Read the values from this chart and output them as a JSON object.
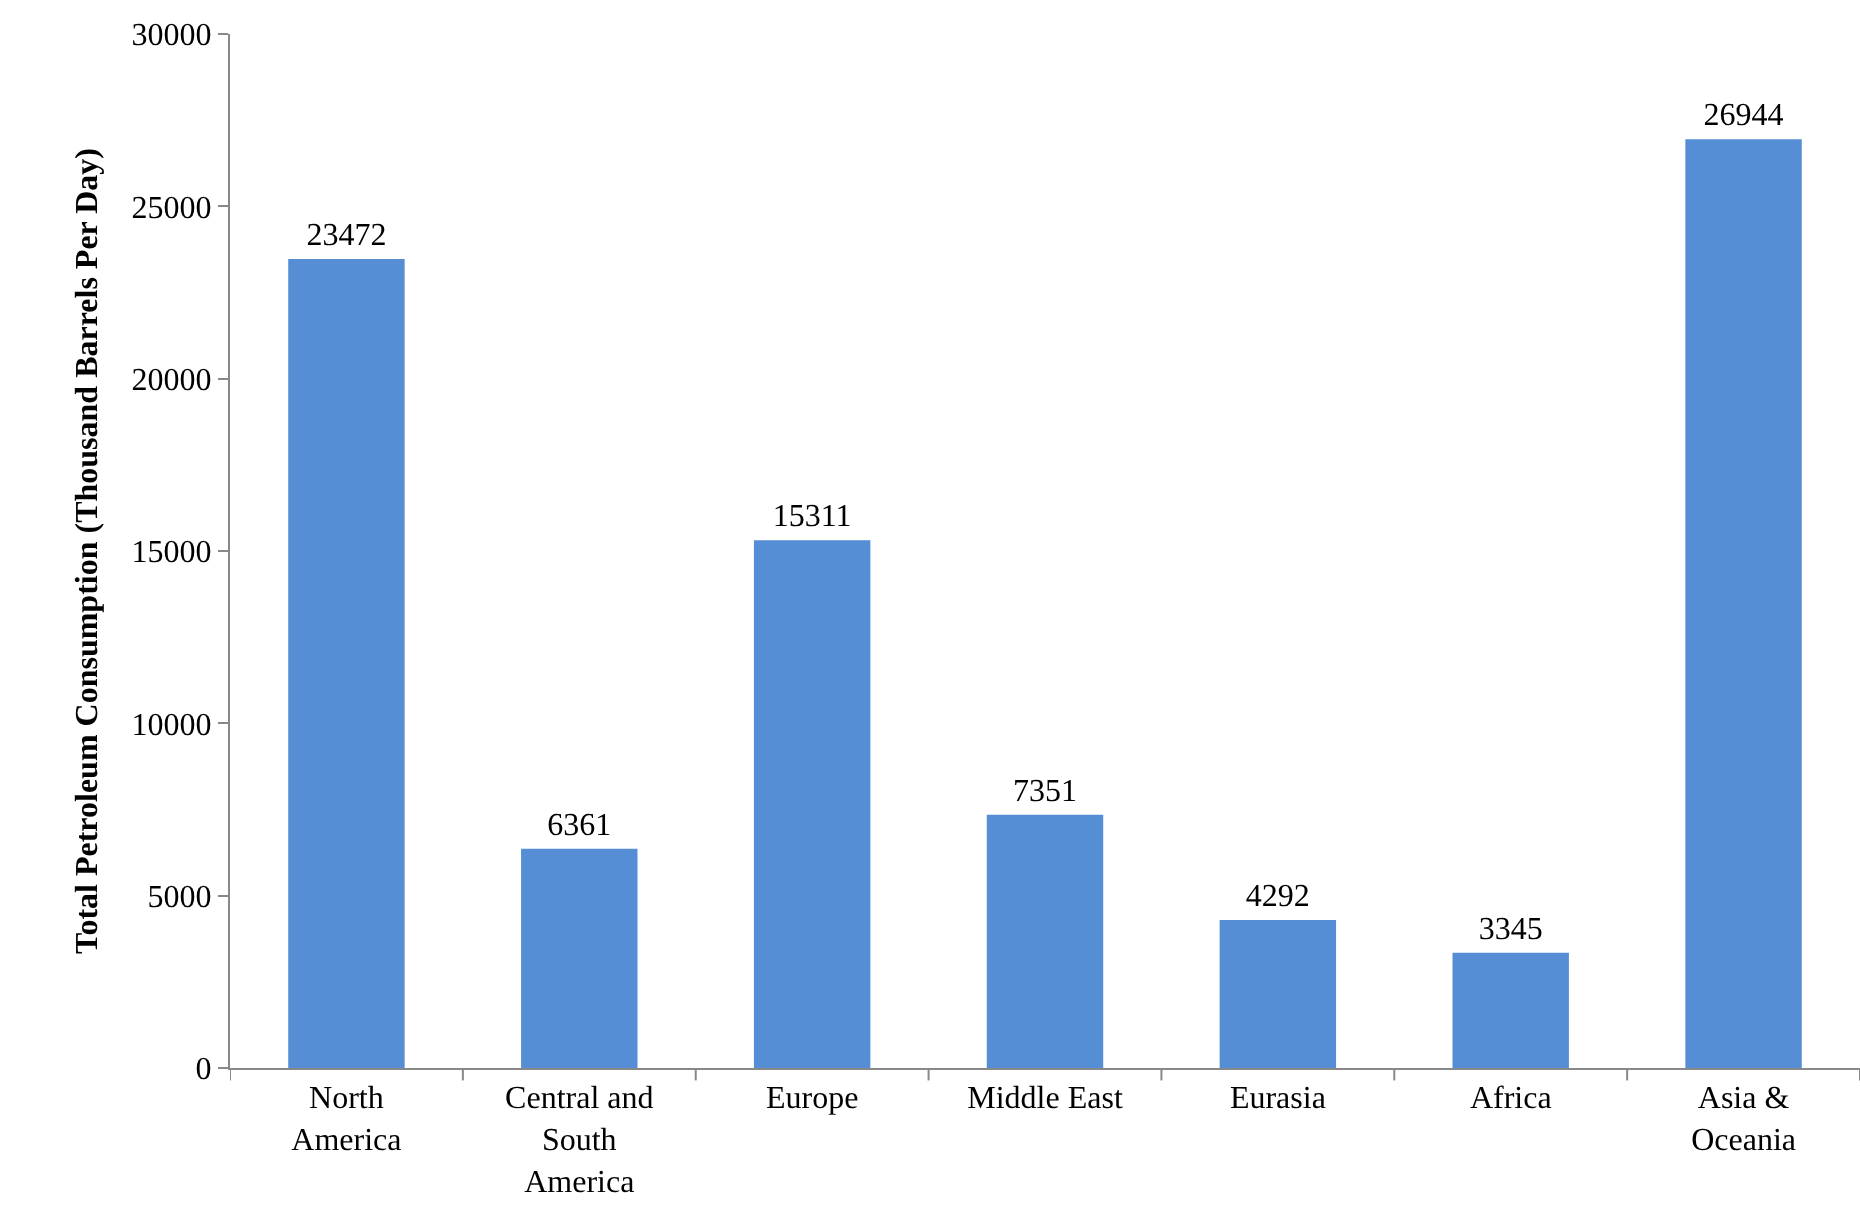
{
  "chart_data": {
    "type": "bar",
    "ylabel": "Total Petroleum Consumption (Thousand Barrels Per Day)",
    "categories": [
      "North America",
      "Central and South America",
      "Europe",
      "Middle East",
      "Eurasia",
      "Africa",
      "Asia & Oceania"
    ],
    "values": [
      23472,
      6361,
      15311,
      7351,
      4292,
      3345,
      26944
    ],
    "color": "#558ed5",
    "ylim": [
      0,
      30000
    ],
    "yticks": [
      0,
      5000,
      10000,
      15000,
      20000,
      25000,
      30000
    ],
    "grid": false,
    "data_labels": true
  }
}
